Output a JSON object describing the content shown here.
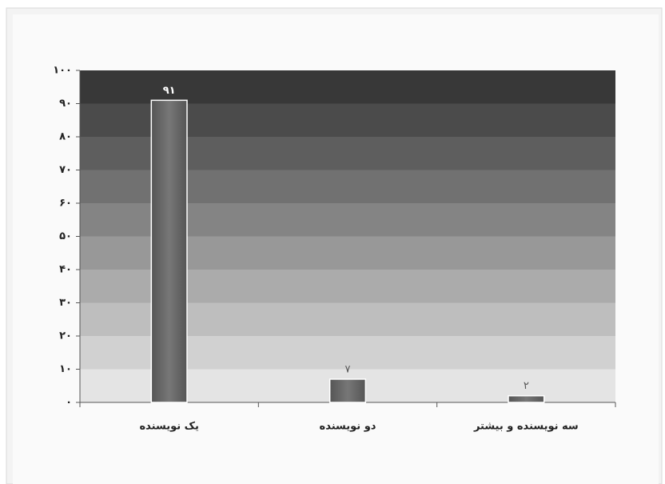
{
  "chart_data": {
    "type": "bar",
    "categories": [
      "یک نویسنده",
      "دو نویسنده",
      "سه نویسنده و بیشتر"
    ],
    "values": [
      91,
      7,
      2
    ],
    "value_labels": [
      "۹۱",
      "۷",
      "۲"
    ],
    "color": "#6a6a6a",
    "ylim": [
      0,
      100
    ],
    "yticks": [
      {
        "value": 0,
        "label": "۰"
      },
      {
        "value": 10,
        "label": "۱۰"
      },
      {
        "value": 20,
        "label": "۲۰"
      },
      {
        "value": 30,
        "label": "۳۰"
      },
      {
        "value": 40,
        "label": "۴۰"
      },
      {
        "value": 50,
        "label": "۵۰"
      },
      {
        "value": 60,
        "label": "۶۰"
      },
      {
        "value": 70,
        "label": "۷۰"
      },
      {
        "value": 80,
        "label": "۸۰"
      },
      {
        "value": 90,
        "label": "۹۰"
      },
      {
        "value": 100,
        "label": "۱۰۰"
      }
    ],
    "grid": true
  }
}
